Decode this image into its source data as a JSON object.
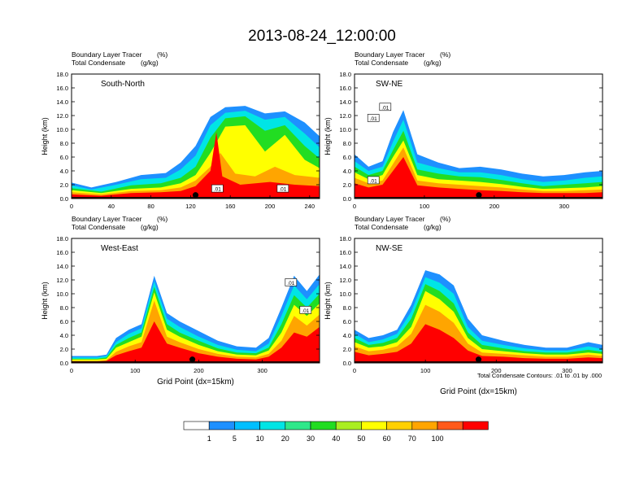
{
  "title": "2013-08-24_12:00:00",
  "colors": {
    "levels": [
      "#ffffff",
      "#1e90ff",
      "#00bfff",
      "#00e5e5",
      "#2ee88a",
      "#22dd22",
      "#aaee22",
      "#ffff00",
      "#ffd000",
      "#ffa500",
      "#ff5a1a",
      "#ff0000"
    ]
  },
  "colorbar": {
    "labels": [
      "1",
      "5",
      "10",
      "20",
      "30",
      "40",
      "50",
      "60",
      "70",
      "100"
    ]
  },
  "contour_note": "Total Condensate Contours: .01 to .01 by .000",
  "chart_data": [
    {
      "type": "heatmap",
      "panel_label": "South-North",
      "header_line1": "Boundary Layer Tracer",
      "header_unit1": "(%)",
      "header_line2": "Total Condensate",
      "header_unit2": "(g/kg)",
      "ylabel": "Height (km)",
      "xlabel": "",
      "xlim": [
        0,
        250
      ],
      "ylim": [
        0,
        18
      ],
      "xticks": [
        "0",
        "40",
        "80",
        "120",
        "160",
        "200",
        "240"
      ],
      "xtick_values": [
        0,
        40,
        80,
        120,
        160,
        200,
        240
      ],
      "yticks": [
        "0.0",
        "2.0",
        "4.0",
        "6.0",
        "8.0",
        "10.0",
        "12.0",
        "14.0",
        "16.0",
        "18.0"
      ],
      "marker_x": 125,
      "contour_labels": [
        ".01",
        ".01"
      ],
      "contour_label_pos": [
        [
          147,
          1.4
        ],
        [
          213,
          1.4
        ]
      ],
      "layers": [
        {
          "level": 1,
          "x": [
            0,
            20,
            45,
            70,
            95,
            110,
            125,
            140,
            155,
            175,
            195,
            215,
            235,
            250
          ],
          "top": [
            2.3,
            1.6,
            2.4,
            3.4,
            3.7,
            5.2,
            7.6,
            11.8,
            13.2,
            13.4,
            12.3,
            12.6,
            11.0,
            9.0
          ]
        },
        {
          "level": 3,
          "x": [
            0,
            20,
            45,
            70,
            95,
            110,
            125,
            140,
            155,
            175,
            195,
            215,
            235,
            250
          ],
          "top": [
            1.9,
            1.3,
            2.0,
            2.8,
            3.0,
            4.2,
            6.2,
            10.6,
            12.4,
            12.7,
            11.4,
            11.8,
            9.4,
            7.4
          ]
        },
        {
          "level": 5,
          "x": [
            0,
            30,
            60,
            90,
            110,
            125,
            140,
            155,
            175,
            195,
            215,
            235,
            250
          ],
          "top": [
            1.5,
            1.0,
            1.9,
            2.2,
            3.0,
            4.6,
            8.8,
            11.6,
            11.9,
            9.8,
            10.6,
            7.6,
            5.8
          ]
        },
        {
          "level": 7,
          "x": [
            0,
            30,
            60,
            90,
            110,
            125,
            140,
            155,
            175,
            195,
            215,
            235,
            250
          ],
          "top": [
            1.2,
            0.8,
            1.4,
            1.6,
            2.2,
            3.4,
            6.6,
            10.4,
            10.6,
            6.8,
            9.2,
            5.6,
            4.4
          ]
        },
        {
          "level": 9,
          "x": [
            0,
            30,
            60,
            90,
            110,
            125,
            140,
            150,
            165,
            185,
            205,
            225,
            250
          ],
          "top": [
            0.9,
            0.6,
            1.1,
            1.2,
            1.6,
            2.6,
            4.6,
            6.6,
            3.6,
            3.2,
            4.6,
            3.4,
            3.0
          ]
        },
        {
          "level": 11,
          "x": [
            0,
            30,
            60,
            90,
            110,
            125,
            140,
            146,
            152,
            170,
            200,
            225,
            250
          ],
          "top": [
            0.6,
            0.4,
            0.8,
            0.9,
            1.1,
            1.8,
            4.0,
            9.6,
            3.2,
            2.0,
            2.4,
            2.0,
            1.8
          ]
        }
      ]
    },
    {
      "type": "heatmap",
      "panel_label": "SW-NE",
      "header_line1": "Boundary Layer Tracer",
      "header_unit1": "(%)",
      "header_line2": "Total Condensate",
      "header_unit2": "(g/kg)",
      "ylabel": "Height (km)",
      "xlabel": "",
      "xlim": [
        0,
        355
      ],
      "ylim": [
        0,
        18
      ],
      "xticks": [
        "0",
        "100",
        "200",
        "300"
      ],
      "xtick_values": [
        0,
        100,
        200,
        300
      ],
      "yticks": [
        "0.0",
        "2.0",
        "4.0",
        "6.0",
        "8.0",
        "10.0",
        "12.0",
        "14.0",
        "16.0",
        "18.0"
      ],
      "marker_x": 178,
      "contour_labels": [
        ".01",
        ".01",
        ".01"
      ],
      "contour_label_pos": [
        [
          44,
          13.2
        ],
        [
          27,
          11.6
        ],
        [
          27,
          2.6
        ]
      ],
      "layers": [
        {
          "level": 1,
          "x": [
            0,
            20,
            40,
            55,
            70,
            90,
            120,
            150,
            180,
            210,
            240,
            270,
            300,
            330,
            355
          ],
          "top": [
            6.4,
            4.6,
            5.4,
            9.6,
            12.8,
            6.4,
            5.2,
            4.4,
            4.6,
            4.2,
            3.6,
            3.2,
            3.4,
            3.8,
            4.0
          ]
        },
        {
          "level": 3,
          "x": [
            0,
            20,
            40,
            55,
            70,
            90,
            120,
            150,
            180,
            210,
            240,
            270,
            300,
            330,
            355
          ],
          "top": [
            5.4,
            4.0,
            4.6,
            8.2,
            11.4,
            5.2,
            4.4,
            3.8,
            3.8,
            3.4,
            2.8,
            2.4,
            2.6,
            3.0,
            3.2
          ]
        },
        {
          "level": 5,
          "x": [
            0,
            20,
            40,
            55,
            70,
            90,
            120,
            150,
            180,
            210,
            240,
            270,
            300,
            330,
            355
          ],
          "top": [
            4.6,
            3.4,
            4.0,
            7.0,
            9.8,
            4.2,
            3.6,
            3.2,
            3.1,
            2.7,
            2.2,
            1.8,
            2.0,
            2.2,
            2.4
          ]
        },
        {
          "level": 7,
          "x": [
            0,
            20,
            40,
            55,
            70,
            90,
            120,
            150,
            180,
            210,
            240,
            270,
            300,
            330,
            355
          ],
          "top": [
            3.8,
            2.8,
            3.4,
            6.0,
            8.4,
            3.4,
            2.8,
            2.6,
            2.4,
            2.1,
            1.7,
            1.4,
            1.5,
            1.6,
            1.8
          ]
        },
        {
          "level": 9,
          "x": [
            0,
            20,
            40,
            55,
            70,
            90,
            120,
            150,
            180,
            210,
            240,
            270,
            300,
            330,
            355
          ],
          "top": [
            3.0,
            2.2,
            2.6,
            5.0,
            7.4,
            2.6,
            2.2,
            2.0,
            1.8,
            1.6,
            1.3,
            1.1,
            1.1,
            1.2,
            1.3
          ]
        },
        {
          "level": 11,
          "x": [
            0,
            20,
            40,
            55,
            70,
            90,
            120,
            150,
            180,
            210,
            240,
            270,
            300,
            330,
            355
          ],
          "top": [
            2.2,
            1.6,
            2.0,
            4.0,
            6.0,
            1.9,
            1.6,
            1.4,
            1.2,
            1.1,
            0.9,
            0.8,
            0.8,
            0.8,
            0.9
          ]
        }
      ]
    },
    {
      "type": "heatmap",
      "panel_label": "West-East",
      "header_line1": "Boundary Layer Tracer",
      "header_unit1": "(%)",
      "header_line2": "Total Condensate",
      "header_unit2": "(g/kg)",
      "ylabel": "Height (km)",
      "xlabel": "Grid Point (dx=15km)",
      "xlim": [
        0,
        390
      ],
      "ylim": [
        0,
        18
      ],
      "xticks": [
        "0",
        "100",
        "200",
        "300"
      ],
      "xtick_values": [
        0,
        100,
        200,
        300
      ],
      "yticks": [
        "0.0",
        "2.0",
        "4.0",
        "6.0",
        "8.0",
        "10.0",
        "12.0",
        "14.0",
        "16.0",
        "18.0"
      ],
      "marker_x": 190,
      "contour_labels": [
        ".01",
        ".01"
      ],
      "contour_label_pos": [
        [
          345,
          11.6
        ],
        [
          368,
          7.6
        ]
      ],
      "layers": [
        {
          "level": 1,
          "x": [
            0,
            40,
            55,
            70,
            90,
            110,
            130,
            150,
            170,
            200,
            230,
            260,
            290,
            310,
            330,
            350,
            370,
            390
          ],
          "top": [
            1.0,
            1.0,
            1.2,
            3.6,
            4.8,
            5.6,
            12.6,
            7.2,
            6.0,
            4.6,
            3.2,
            2.4,
            2.2,
            3.6,
            8.0,
            12.6,
            10.4,
            12.8
          ]
        },
        {
          "level": 3,
          "x": [
            0,
            40,
            55,
            70,
            90,
            110,
            130,
            150,
            170,
            200,
            230,
            260,
            290,
            310,
            330,
            350,
            370,
            390
          ],
          "top": [
            0.8,
            0.8,
            1.0,
            3.0,
            4.2,
            5.0,
            11.8,
            6.4,
            5.2,
            3.8,
            2.6,
            1.9,
            1.7,
            2.8,
            6.8,
            11.2,
            9.2,
            11.4
          ]
        },
        {
          "level": 5,
          "x": [
            0,
            40,
            55,
            70,
            90,
            110,
            130,
            150,
            170,
            200,
            230,
            260,
            290,
            310,
            330,
            350,
            370,
            390
          ],
          "top": [
            0.6,
            0.6,
            0.8,
            2.6,
            3.6,
            4.4,
            11.0,
            5.6,
            4.4,
            3.2,
            2.1,
            1.5,
            1.4,
            2.2,
            5.6,
            9.8,
            8.0,
            10.0
          ]
        },
        {
          "level": 7,
          "x": [
            0,
            40,
            55,
            70,
            90,
            110,
            130,
            150,
            170,
            200,
            230,
            260,
            290,
            310,
            330,
            350,
            370,
            390
          ],
          "top": [
            0.5,
            0.5,
            0.6,
            2.2,
            3.0,
            3.8,
            10.2,
            4.8,
            3.8,
            2.6,
            1.7,
            1.2,
            1.1,
            1.8,
            4.4,
            8.4,
            6.8,
            8.6
          ]
        },
        {
          "level": 9,
          "x": [
            0,
            40,
            55,
            70,
            90,
            110,
            130,
            150,
            170,
            200,
            230,
            260,
            290,
            310,
            330,
            350,
            370,
            390
          ],
          "top": [
            0.3,
            0.3,
            0.4,
            1.6,
            2.4,
            3.0,
            9.0,
            3.8,
            3.0,
            2.0,
            1.3,
            0.9,
            0.8,
            1.3,
            3.2,
            6.8,
            5.4,
            7.0
          ]
        },
        {
          "level": 11,
          "x": [
            0,
            40,
            55,
            70,
            90,
            110,
            130,
            150,
            170,
            200,
            230,
            260,
            290,
            310,
            330,
            350,
            370,
            390
          ],
          "top": [
            0.2,
            0.2,
            0.3,
            1.1,
            1.7,
            2.2,
            6.0,
            2.8,
            2.2,
            1.4,
            0.9,
            0.6,
            0.5,
            0.9,
            2.2,
            4.4,
            3.8,
            5.2
          ]
        }
      ]
    },
    {
      "type": "heatmap",
      "panel_label": "NW-SE",
      "header_line1": "Boundary Layer Tracer",
      "header_unit1": "(%)",
      "header_line2": "Total Condensate",
      "header_unit2": "(g/kg)",
      "ylabel": "Height (km)",
      "xlabel": "Grid Point (dx=15km)",
      "xlim": [
        0,
        350
      ],
      "ylim": [
        0,
        18
      ],
      "xticks": [
        "0",
        "100",
        "200",
        "300"
      ],
      "xtick_values": [
        0,
        100,
        200,
        300
      ],
      "yticks": [
        "0.0",
        "2.0",
        "4.0",
        "6.0",
        "8.0",
        "10.0",
        "12.0",
        "14.0",
        "16.0",
        "18.0"
      ],
      "marker_x": 175,
      "contour_labels": [],
      "contour_label_pos": [],
      "layers": [
        {
          "level": 1,
          "x": [
            0,
            20,
            40,
            60,
            80,
            100,
            120,
            140,
            160,
            180,
            210,
            240,
            270,
            300,
            330,
            350
          ],
          "top": [
            4.8,
            3.6,
            4.0,
            4.8,
            8.4,
            13.4,
            12.8,
            11.2,
            6.4,
            4.0,
            3.2,
            2.6,
            2.2,
            2.2,
            3.0,
            2.6
          ]
        },
        {
          "level": 3,
          "x": [
            0,
            20,
            40,
            60,
            80,
            100,
            120,
            140,
            160,
            180,
            210,
            240,
            270,
            300,
            330,
            350
          ],
          "top": [
            4.2,
            3.0,
            3.4,
            4.2,
            7.4,
            12.4,
            11.6,
            10.0,
            5.2,
            3.2,
            2.6,
            2.1,
            1.8,
            1.8,
            2.4,
            2.0
          ]
        },
        {
          "level": 5,
          "x": [
            0,
            20,
            40,
            60,
            80,
            100,
            120,
            140,
            160,
            180,
            210,
            240,
            270,
            300,
            330,
            350
          ],
          "top": [
            3.6,
            2.6,
            2.9,
            3.6,
            6.4,
            11.4,
            10.4,
            8.6,
            4.4,
            2.6,
            2.1,
            1.7,
            1.5,
            1.5,
            1.9,
            1.6
          ]
        },
        {
          "level": 7,
          "x": [
            0,
            20,
            40,
            60,
            80,
            100,
            120,
            140,
            160,
            180,
            210,
            240,
            270,
            300,
            330,
            350
          ],
          "top": [
            3.0,
            2.2,
            2.4,
            3.0,
            5.2,
            10.4,
            9.2,
            7.4,
            3.6,
            2.0,
            1.7,
            1.4,
            1.2,
            1.2,
            1.5,
            1.3
          ]
        },
        {
          "level": 9,
          "x": [
            0,
            20,
            40,
            60,
            80,
            100,
            120,
            140,
            160,
            180,
            210,
            240,
            270,
            300,
            330,
            350
          ],
          "top": [
            2.4,
            1.7,
            1.9,
            2.4,
            4.2,
            8.4,
            7.4,
            5.8,
            2.8,
            1.5,
            1.3,
            1.1,
            0.9,
            0.9,
            1.2,
            1.0
          ]
        },
        {
          "level": 11,
          "x": [
            0,
            20,
            40,
            60,
            80,
            100,
            120,
            140,
            160,
            180,
            210,
            240,
            270,
            300,
            330,
            350
          ],
          "top": [
            1.6,
            1.1,
            1.3,
            1.6,
            2.8,
            5.6,
            4.8,
            3.6,
            1.8,
            1.0,
            0.9,
            0.7,
            0.6,
            0.6,
            0.8,
            0.7
          ]
        }
      ]
    }
  ]
}
